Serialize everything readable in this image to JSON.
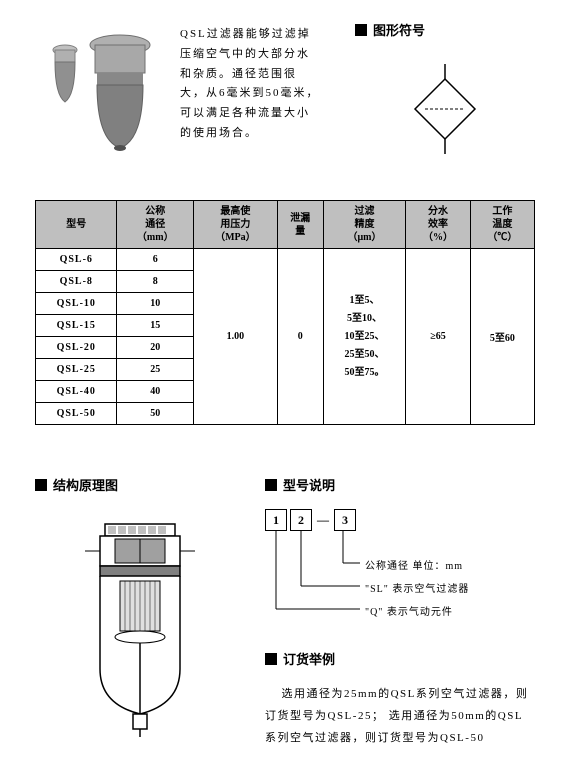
{
  "description_text": "QSL过滤器能够过滤掉压缩空气中的大部分水和杂质。通径范围很大，从6毫米到50毫米，可以满足各种流量大小的使用场合。",
  "symbol_heading": "图形符号",
  "structure_heading": "结构原理图",
  "model_heading": "型号说明",
  "order_heading": "订货举例",
  "order_text": "选用通径为25mm的QSL系列空气过滤器，则订货型号为QSL-25； 选用通径为50mm的QSL系列空气过滤器，则订货型号为QSL-50",
  "table": {
    "headers": [
      "型号",
      "公称\n通径\n（mm）",
      "最高使\n用压力\n（MPa）",
      "泄漏\n量",
      "过滤\n精度\n（μm）",
      "分水\n效率\n（%）",
      "工作\n温度\n（℃）"
    ],
    "models": [
      "QSL-6",
      "QSL-8",
      "QSL-10",
      "QSL-15",
      "QSL-20",
      "QSL-25",
      "QSL-40",
      "QSL-50"
    ],
    "diameters": [
      "6",
      "8",
      "10",
      "15",
      "20",
      "25",
      "40",
      "50"
    ],
    "max_pressure": "1.00",
    "leakage": "0",
    "precision": "1至5、\n5至10、\n10至25、\n25至50、\n50至75。",
    "efficiency": "≥65",
    "temperature": "5至60"
  },
  "model_boxes": [
    "1",
    "2",
    "3"
  ],
  "explain_lines": [
    "公称通径 单位：mm",
    "\"SL\" 表示空气过滤器",
    "\"Q\" 表示气动元件"
  ]
}
